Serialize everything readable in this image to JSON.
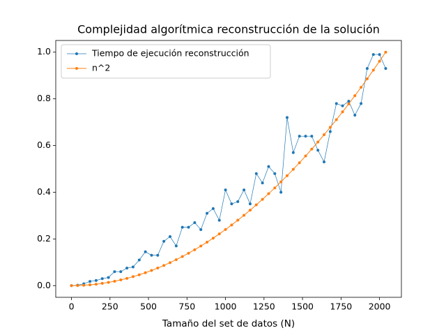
{
  "chart_data": {
    "type": "line",
    "title": "Complejidad algorítmica reconstrucción de la solución",
    "x_label": "Tamaño del set de datos (N)",
    "x": [
      0,
      40,
      80,
      120,
      160,
      200,
      240,
      280,
      320,
      360,
      400,
      440,
      480,
      520,
      560,
      600,
      640,
      680,
      720,
      760,
      800,
      840,
      880,
      920,
      960,
      1000,
      1040,
      1080,
      1120,
      1160,
      1200,
      1240,
      1280,
      1320,
      1360,
      1400,
      1440,
      1480,
      1520,
      1560,
      1600,
      1640,
      1680,
      1720,
      1760,
      1800,
      1840,
      1880,
      1920,
      1960,
      2000,
      2040
    ],
    "series": [
      {
        "name": "Tiempo de ejecución reconstrucción",
        "color": "#1f77b4",
        "line_width": 0.7,
        "values": [
          0,
          0.002,
          0.008,
          0.018,
          0.022,
          0.03,
          0.035,
          0.06,
          0.06,
          0.075,
          0.08,
          0.11,
          0.145,
          0.13,
          0.13,
          0.19,
          0.21,
          0.17,
          0.25,
          0.25,
          0.27,
          0.24,
          0.31,
          0.33,
          0.28,
          0.41,
          0.35,
          0.36,
          0.41,
          0.35,
          0.48,
          0.44,
          0.51,
          0.48,
          0.4,
          0.72,
          0.57,
          0.64,
          0.64,
          0.64,
          0.58,
          0.53,
          0.66,
          0.78,
          0.77,
          0.79,
          0.73,
          0.78,
          0.93,
          0.99,
          0.99,
          0.93
        ]
      },
      {
        "name": "n^2",
        "color": "#ff7f0e",
        "line_width": 1,
        "values": [
          0,
          0.0004,
          0.0015,
          0.0035,
          0.0062,
          0.0096,
          0.0138,
          0.0188,
          0.0246,
          0.0311,
          0.0384,
          0.0465,
          0.0554,
          0.065,
          0.0754,
          0.0865,
          0.0984,
          0.1111,
          0.1246,
          0.1388,
          0.1538,
          0.1696,
          0.1861,
          0.2034,
          0.2215,
          0.2403,
          0.2599,
          0.2803,
          0.3014,
          0.3233,
          0.346,
          0.3695,
          0.3937,
          0.4187,
          0.4444,
          0.471,
          0.4983,
          0.5263,
          0.5552,
          0.5848,
          0.6151,
          0.6463,
          0.6782,
          0.7109,
          0.7443,
          0.7785,
          0.8135,
          0.8493,
          0.8858,
          0.9231,
          0.9612,
          1.0
        ]
      }
    ],
    "xlim": [
      -102,
      2142
    ],
    "ylim": [
      -0.05,
      1.05
    ],
    "xticks": [
      0,
      250,
      500,
      750,
      1000,
      1250,
      1500,
      1750,
      2000
    ],
    "yticks": [
      {
        "value": 0,
        "label": "0.0"
      },
      {
        "value": 0.2,
        "label": "0.2"
      },
      {
        "value": 0.4,
        "label": "0.4"
      },
      {
        "value": 0.6,
        "label": "0.6"
      },
      {
        "value": 0.8,
        "label": "0.8"
      },
      {
        "value": 1,
        "label": "1.0"
      }
    ],
    "legend": "upper left",
    "grid": false
  }
}
